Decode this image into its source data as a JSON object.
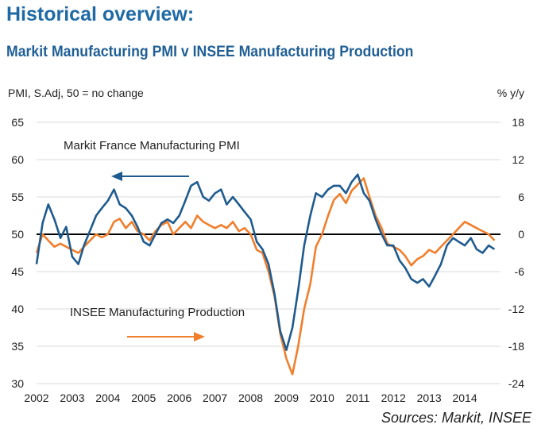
{
  "header": {
    "title": "Historical overview:",
    "subtitle": "Markit Manufacturing PMI v INSEE Manufacturing Production"
  },
  "footer": {
    "source": "Sources: Markit, INSEE"
  },
  "colors": {
    "pmi": "#1f5b8e",
    "insee": "#f07f2d",
    "grid": "#d9d9d9",
    "refline": "#000000"
  },
  "chart_data": {
    "type": "line",
    "title": "Markit Manufacturing PMI v INSEE Manufacturing Production",
    "left_axis": {
      "label": "PMI, S.Adj, 50 = no change",
      "ylim": [
        30,
        65
      ],
      "ticks": [
        30,
        35,
        40,
        45,
        50,
        55,
        60,
        65
      ]
    },
    "right_axis": {
      "label": "% y/y",
      "ylim": [
        -24,
        18
      ],
      "ticks": [
        -24,
        -18,
        -12,
        -6,
        0,
        6,
        12,
        18
      ]
    },
    "x_axis": {
      "xlim": [
        2002,
        2015
      ],
      "ticks": [
        "2002",
        "2003",
        "2004",
        "2005",
        "2006",
        "2007",
        "2008",
        "2009",
        "2010",
        "2011",
        "2012",
        "2013",
        "2014"
      ]
    },
    "grid": "horizontal",
    "reference_line": 50,
    "annotations": [
      {
        "text": "Markit France Manufacturing PMI",
        "arrow": "left"
      },
      {
        "text": "INSEE Manufacturing Production",
        "arrow": "right"
      }
    ],
    "series": [
      {
        "name": "Markit France Manufacturing PMI",
        "axis": "left",
        "x": [
          2002.0,
          2002.17,
          2002.33,
          2002.5,
          2002.67,
          2002.83,
          2003.0,
          2003.17,
          2003.33,
          2003.5,
          2003.67,
          2003.83,
          2004.0,
          2004.17,
          2004.33,
          2004.5,
          2004.67,
          2004.83,
          2005.0,
          2005.17,
          2005.33,
          2005.5,
          2005.67,
          2005.83,
          2006.0,
          2006.17,
          2006.33,
          2006.5,
          2006.67,
          2006.83,
          2007.0,
          2007.17,
          2007.33,
          2007.5,
          2007.67,
          2007.83,
          2008.0,
          2008.17,
          2008.33,
          2008.5,
          2008.67,
          2008.83,
          2009.0,
          2009.17,
          2009.33,
          2009.5,
          2009.67,
          2009.83,
          2010.0,
          2010.17,
          2010.33,
          2010.5,
          2010.67,
          2010.83,
          2011.0,
          2011.17,
          2011.33,
          2011.5,
          2011.67,
          2011.83,
          2012.0,
          2012.17,
          2012.33,
          2012.5,
          2012.67,
          2012.83,
          2013.0,
          2013.17,
          2013.33,
          2013.5,
          2013.67,
          2013.83,
          2014.0,
          2014.17,
          2014.33,
          2014.5,
          2014.67,
          2014.83
        ],
        "values": [
          46.0,
          51.5,
          54.0,
          52.0,
          49.5,
          51.0,
          47.0,
          46.0,
          48.5,
          50.5,
          52.5,
          53.5,
          54.5,
          56.0,
          54.0,
          53.5,
          52.5,
          51.0,
          49.0,
          48.5,
          50.0,
          51.5,
          52.0,
          51.5,
          52.5,
          54.5,
          56.5,
          57.0,
          55.0,
          54.5,
          55.5,
          56.0,
          54.0,
          55.0,
          54.0,
          53.0,
          52.0,
          49.0,
          48.0,
          46.0,
          42.0,
          37.0,
          34.5,
          37.5,
          42.5,
          48.5,
          52.5,
          55.5,
          55.0,
          56.0,
          56.5,
          56.5,
          55.5,
          57.0,
          58.0,
          55.5,
          54.5,
          52.0,
          50.0,
          48.5,
          48.5,
          46.5,
          45.5,
          44.0,
          43.5,
          44.0,
          43.0,
          44.5,
          46.0,
          48.5,
          49.5,
          49.0,
          48.5,
          49.5,
          48.0,
          47.5,
          48.5,
          48.0
        ]
      },
      {
        "name": "INSEE Manufacturing Production",
        "axis": "right",
        "x": [
          2002.0,
          2002.17,
          2002.33,
          2002.5,
          2002.67,
          2002.83,
          2003.0,
          2003.17,
          2003.33,
          2003.5,
          2003.67,
          2003.83,
          2004.0,
          2004.17,
          2004.33,
          2004.5,
          2004.67,
          2004.83,
          2005.0,
          2005.17,
          2005.33,
          2005.5,
          2005.67,
          2005.83,
          2006.0,
          2006.17,
          2006.33,
          2006.5,
          2006.67,
          2006.83,
          2007.0,
          2007.17,
          2007.33,
          2007.5,
          2007.67,
          2007.83,
          2008.0,
          2008.17,
          2008.33,
          2008.5,
          2008.67,
          2008.83,
          2009.0,
          2009.17,
          2009.33,
          2009.5,
          2009.67,
          2009.83,
          2010.0,
          2010.17,
          2010.33,
          2010.5,
          2010.67,
          2010.83,
          2011.0,
          2011.17,
          2011.33,
          2011.5,
          2011.67,
          2011.83,
          2012.0,
          2012.17,
          2012.33,
          2012.5,
          2012.67,
          2012.83,
          2013.0,
          2013.17,
          2013.33,
          2013.5,
          2013.67,
          2013.83,
          2014.0,
          2014.17,
          2014.33,
          2014.5,
          2014.67,
          2014.83
        ],
        "values": [
          -3.0,
          0.0,
          -1.0,
          -2.0,
          -1.5,
          -2.0,
          -2.5,
          -3.0,
          -2.0,
          -1.0,
          0.0,
          -0.5,
          0.0,
          2.0,
          2.5,
          1.0,
          2.0,
          0.5,
          0.0,
          -1.0,
          0.5,
          1.5,
          2.0,
          0.0,
          1.0,
          2.0,
          1.0,
          3.0,
          2.0,
          1.5,
          1.0,
          1.5,
          1.0,
          2.0,
          0.5,
          1.0,
          0.0,
          -2.5,
          -3.0,
          -6.0,
          -10.0,
          -16.0,
          -20.0,
          -22.5,
          -18.0,
          -12.0,
          -8.0,
          -2.0,
          0.0,
          3.0,
          5.5,
          6.5,
          5.0,
          7.0,
          8.0,
          9.0,
          6.0,
          3.0,
          1.0,
          -1.5,
          -2.0,
          -2.5,
          -3.5,
          -5.0,
          -4.0,
          -3.5,
          -2.5,
          -3.0,
          -2.0,
          -1.0,
          0.0,
          1.0,
          2.0,
          1.5,
          1.0,
          0.5,
          0.0,
          -1.0
        ]
      }
    ]
  }
}
